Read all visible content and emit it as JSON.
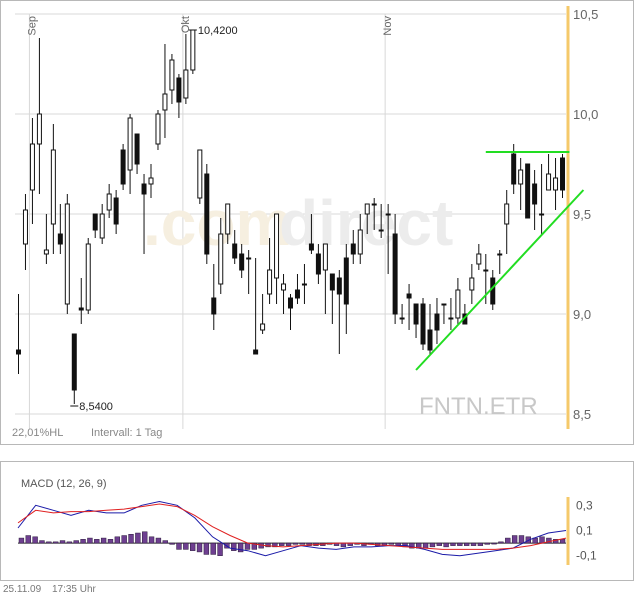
{
  "footer": {
    "date": "25.11.09",
    "time": "17:35 Uhr"
  },
  "watermark": {
    "left": ".com",
    "right": "direct"
  },
  "main_chart": {
    "symbol": "FNTN.ETR",
    "stats_label": "22,01%HL",
    "interval_label": "Intervall: 1 Tag",
    "high_label": "10,4200",
    "low_label": "8,5400",
    "colors": {
      "candle": "#111111",
      "trendline": "#22dd22",
      "marker": "#f5c96a",
      "grid": "#d8d8d8"
    }
  },
  "macd": {
    "title": "MACD (12, 26, 9)",
    "colors": {
      "macd": "#1a1aa8",
      "signal": "#e02020",
      "histogram": "#6e3f90",
      "marker": "#f5c96a"
    }
  },
  "chart_data": [
    {
      "type": "candlestick",
      "title": "FNTN.ETR",
      "x_tick_labels": [
        "Sep",
        "Okt",
        "Nov"
      ],
      "y_tick_labels": [
        "10,5",
        "10,0",
        "9,5",
        "9,0",
        "8,5"
      ],
      "ylim": [
        8.5,
        10.5
      ],
      "grid": true,
      "annotations": [
        {
          "text": "10,4200",
          "value": 10.42
        },
        {
          "text": "8,5400",
          "value": 8.54
        }
      ],
      "trendlines": [
        {
          "kind": "horizontal",
          "value": 9.81,
          "from_bar": 67,
          "to_bar": 79
        },
        {
          "kind": "ascending",
          "from_bar": 57,
          "from_value": 8.72,
          "to_bar": 81,
          "to_value": 9.62
        }
      ],
      "candles": [
        [
          8.82,
          8.8,
          9.1,
          8.7
        ],
        [
          9.35,
          9.52,
          9.6,
          9.22
        ],
        [
          9.62,
          9.85,
          9.98,
          9.45
        ],
        [
          9.85,
          10.0,
          10.38,
          9.6
        ],
        [
          9.3,
          9.32,
          9.5,
          9.25
        ],
        [
          9.45,
          9.82,
          9.95,
          9.3
        ],
        [
          9.4,
          9.35,
          9.55,
          9.3
        ],
        [
          9.05,
          9.55,
          9.6,
          9.0
        ],
        [
          8.9,
          8.62,
          8.9,
          8.55
        ],
        [
          9.03,
          9.02,
          9.18,
          8.95
        ],
        [
          9.02,
          9.35,
          9.38,
          9.0
        ],
        [
          9.5,
          9.42,
          9.5,
          9.38
        ],
        [
          9.38,
          9.5,
          9.55,
          9.35
        ],
        [
          9.52,
          9.6,
          9.65,
          9.48
        ],
        [
          9.58,
          9.45,
          9.62,
          9.4
        ],
        [
          9.82,
          9.65,
          9.85,
          9.62
        ],
        [
          9.72,
          9.98,
          10.0,
          9.6
        ],
        [
          9.9,
          9.75,
          9.9,
          9.7
        ],
        [
          9.65,
          9.6,
          9.7,
          9.3
        ],
        [
          9.65,
          9.68,
          9.75,
          9.58
        ],
        [
          9.85,
          10.0,
          10.02,
          9.82
        ],
        [
          10.02,
          10.1,
          10.35,
          9.88
        ],
        [
          10.12,
          10.27,
          10.3,
          10.05
        ],
        [
          10.18,
          10.06,
          10.2,
          9.98
        ],
        [
          10.08,
          10.22,
          10.4,
          10.05
        ],
        [
          10.22,
          10.42,
          10.42,
          10.2
        ],
        [
          9.58,
          9.82,
          9.8,
          9.55
        ],
        [
          9.7,
          9.3,
          9.75,
          9.25
        ],
        [
          9.08,
          9.0,
          9.25,
          8.92
        ],
        [
          9.15,
          9.4,
          9.48,
          9.1
        ],
        [
          9.4,
          9.55,
          9.55,
          9.35
        ],
        [
          9.35,
          9.28,
          9.42,
          9.25
        ],
        [
          9.3,
          9.22,
          9.35,
          9.18
        ],
        [
          9.28,
          9.28,
          9.32,
          9.1
        ],
        [
          8.82,
          8.8,
          9.28,
          8.8
        ],
        [
          8.92,
          8.95,
          9.1,
          8.9
        ],
        [
          9.1,
          9.22,
          9.38,
          9.05
        ],
        [
          9.18,
          9.5,
          9.42,
          9.05
        ],
        [
          9.12,
          9.15,
          9.2,
          9.0
        ],
        [
          9.08,
          9.03,
          9.1,
          8.92
        ],
        [
          9.12,
          9.08,
          9.2,
          9.05
        ],
        [
          9.15,
          9.15,
          9.25,
          9.05
        ],
        [
          9.35,
          9.32,
          9.5,
          9.3
        ],
        [
          9.3,
          9.2,
          9.35,
          9.15
        ],
        [
          9.22,
          9.35,
          9.35,
          9.0
        ],
        [
          9.2,
          9.12,
          9.2,
          8.95
        ],
        [
          9.18,
          9.1,
          9.22,
          8.8
        ],
        [
          9.28,
          9.05,
          9.35,
          8.9
        ],
        [
          9.35,
          9.3,
          9.42,
          9.25
        ],
        [
          9.3,
          9.42,
          9.5,
          9.25
        ],
        [
          9.5,
          9.55,
          9.55,
          9.4
        ],
        [
          9.55,
          9.55,
          9.58,
          9.42
        ],
        [
          9.42,
          9.42,
          9.55,
          9.38
        ],
        [
          9.5,
          9.5,
          9.55,
          9.2
        ],
        [
          9.4,
          9.0,
          9.5,
          8.95
        ],
        [
          8.98,
          8.98,
          9.05,
          8.95
        ],
        [
          9.1,
          9.08,
          9.15,
          8.92
        ],
        [
          9.05,
          8.95,
          9.05,
          8.88
        ],
        [
          9.05,
          8.85,
          9.08,
          8.82
        ],
        [
          8.92,
          8.82,
          9.05,
          8.8
        ],
        [
          9.0,
          8.92,
          9.08,
          8.85
        ],
        [
          9.05,
          9.05,
          9.05,
          8.95
        ],
        [
          8.98,
          8.98,
          9.08,
          8.92
        ],
        [
          8.98,
          9.12,
          9.18,
          8.95
        ],
        [
          9.0,
          8.95,
          9.05,
          8.95
        ],
        [
          9.12,
          9.18,
          9.25,
          9.05
        ],
        [
          9.25,
          9.3,
          9.35,
          9.22
        ],
        [
          9.22,
          9.22,
          9.3,
          9.05
        ],
        [
          9.18,
          9.05,
          9.22,
          9.02
        ],
        [
          9.3,
          9.3,
          9.32,
          9.2
        ],
        [
          9.45,
          9.55,
          9.62,
          9.3
        ],
        [
          9.8,
          9.65,
          9.85,
          9.6
        ],
        [
          9.65,
          9.72,
          9.78,
          9.52
        ],
        [
          9.75,
          9.48,
          9.75,
          9.48
        ],
        [
          9.65,
          9.55,
          9.72,
          9.42
        ],
        [
          9.5,
          9.5,
          9.75,
          9.4
        ],
        [
          9.62,
          9.7,
          9.8,
          9.62
        ],
        [
          9.62,
          9.68,
          9.78,
          9.52
        ],
        [
          9.78,
          9.62,
          9.8,
          9.58
        ]
      ]
    },
    {
      "type": "macd",
      "title": "MACD (12, 26, 9)",
      "y_tick_labels": [
        "0,3",
        "0,1",
        "-0,1"
      ],
      "ylim": [
        -0.15,
        0.35
      ],
      "series": [
        {
          "name": "MACD",
          "values": [
            0.12,
            0.3,
            0.26,
            0.22,
            0.26,
            0.24,
            0.24,
            0.3,
            0.33,
            0.3,
            0.2,
            0.05,
            -0.04,
            -0.06,
            -0.1,
            -0.06,
            -0.02,
            -0.04,
            -0.05,
            -0.03,
            -0.03,
            -0.02,
            -0.02,
            -0.05,
            -0.09,
            -0.1,
            -0.08,
            -0.06,
            -0.04,
            0.03,
            0.08,
            0.1
          ]
        },
        {
          "name": "Signal",
          "values": [
            0.16,
            0.26,
            0.24,
            0.25,
            0.25,
            0.26,
            0.27,
            0.29,
            0.31,
            0.29,
            0.22,
            0.13,
            0.06,
            0.0,
            -0.02,
            -0.03,
            -0.02,
            -0.01,
            0.0,
            0.0,
            -0.01,
            -0.02,
            -0.03,
            -0.04,
            -0.05,
            -0.05,
            -0.05,
            -0.05,
            -0.04,
            -0.02,
            0.01,
            0.04
          ]
        }
      ],
      "histogram": [
        0.04,
        0.06,
        0.05,
        0.02,
        0.01,
        0.01,
        0.02,
        0.01,
        0.02,
        0.03,
        0.04,
        0.03,
        0.04,
        0.03,
        0.05,
        0.06,
        0.07,
        0.08,
        0.09,
        0.05,
        0.04,
        0.02,
        -0.01,
        -0.05,
        -0.05,
        -0.06,
        -0.07,
        -0.09,
        -0.09,
        -0.1,
        -0.04,
        -0.06,
        -0.07,
        -0.05,
        -0.05,
        -0.04,
        -0.03,
        -0.03,
        -0.02,
        -0.02,
        -0.01,
        -0.01,
        -0.02,
        -0.02,
        -0.02,
        -0.01,
        -0.02,
        -0.03,
        -0.02,
        -0.01,
        -0.02,
        -0.01,
        -0.02,
        -0.02,
        -0.01,
        -0.02,
        -0.03,
        -0.04,
        -0.04,
        -0.04,
        -0.03,
        -0.02,
        -0.03,
        -0.02,
        -0.02,
        -0.02,
        -0.02,
        -0.02,
        -0.01,
        0.0,
        0.01,
        0.04,
        0.06,
        0.06,
        0.05,
        0.04,
        0.05,
        0.04,
        0.03,
        0.03
      ]
    }
  ]
}
